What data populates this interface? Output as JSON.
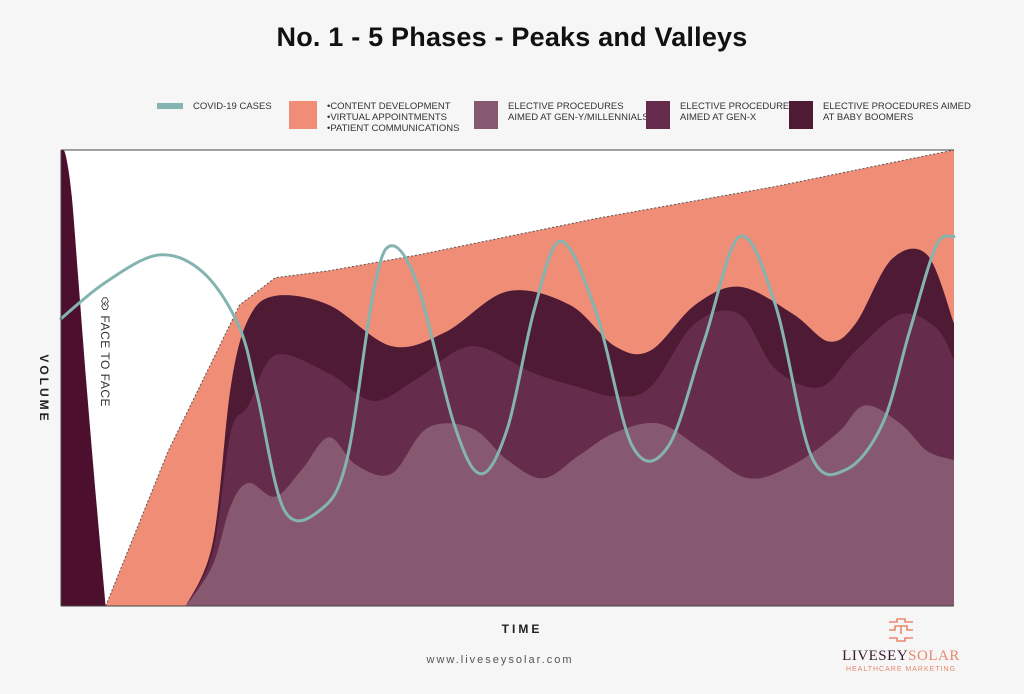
{
  "chart_data": {
    "type": "area",
    "title": "No. 1 - 5 Phases - Peaks and Valleys",
    "xlabel": "TIME",
    "ylabel": "VOLUME",
    "x_range": [
      0,
      100
    ],
    "y_range": [
      0,
      100
    ],
    "annotation": "FACE TO FACE",
    "series": [
      {
        "name": "Face to Face",
        "color": "#4c0f2e",
        "points": [
          [
            0,
            100
          ],
          [
            0.5,
            99
          ],
          [
            1.2,
            90
          ],
          [
            2,
            70
          ],
          [
            3,
            45
          ],
          [
            4,
            22
          ],
          [
            5,
            0
          ]
        ]
      },
      {
        "name": "Content Development / Virtual Appointments / Patient Communications",
        "color": "#ef8d77",
        "points": [
          [
            5,
            0
          ],
          [
            12,
            34
          ],
          [
            20,
            66
          ],
          [
            24,
            72
          ],
          [
            30,
            73.5
          ],
          [
            40,
            77
          ],
          [
            50,
            81
          ],
          [
            60,
            85
          ],
          [
            70,
            88.5
          ],
          [
            80,
            92
          ],
          [
            90,
            96
          ],
          [
            100,
            100
          ]
        ]
      },
      {
        "name": "Elective Procedures Aimed at Baby Boomers",
        "color": "#4e1a34",
        "points": [
          [
            14,
            0
          ],
          [
            17,
            14
          ],
          [
            19,
            48
          ],
          [
            21,
            63
          ],
          [
            24,
            68
          ],
          [
            30,
            66
          ],
          [
            37,
            57
          ],
          [
            43,
            60
          ],
          [
            50,
            69
          ],
          [
            57,
            66
          ],
          [
            62,
            57
          ],
          [
            66,
            56
          ],
          [
            71,
            66
          ],
          [
            76,
            70
          ],
          [
            82,
            64
          ],
          [
            86,
            58
          ],
          [
            89,
            62
          ],
          [
            93,
            76
          ],
          [
            97,
            77
          ],
          [
            100,
            62
          ]
        ]
      },
      {
        "name": "Elective Procedures Aimed at Gen-X",
        "color": "#652c4b",
        "points": [
          [
            14,
            0
          ],
          [
            17,
            12
          ],
          [
            19,
            38
          ],
          [
            21,
            44
          ],
          [
            24,
            55
          ],
          [
            30,
            51
          ],
          [
            35,
            45
          ],
          [
            40,
            50
          ],
          [
            46,
            57
          ],
          [
            53,
            51
          ],
          [
            58,
            48
          ],
          [
            62,
            46
          ],
          [
            66,
            48
          ],
          [
            71,
            62
          ],
          [
            76,
            64
          ],
          [
            80,
            52
          ],
          [
            85,
            48
          ],
          [
            89,
            56
          ],
          [
            94,
            64
          ],
          [
            98,
            61
          ],
          [
            100,
            54
          ]
        ]
      },
      {
        "name": "Elective Procedures Aimed at Gen-Y/Millennials",
        "color": "#865971",
        "points": [
          [
            14,
            0
          ],
          [
            17,
            9
          ],
          [
            19,
            22
          ],
          [
            21,
            27
          ],
          [
            24,
            24
          ],
          [
            27,
            30
          ],
          [
            30,
            37
          ],
          [
            33,
            31
          ],
          [
            37,
            29
          ],
          [
            41,
            39
          ],
          [
            46,
            39
          ],
          [
            50,
            32
          ],
          [
            54,
            28
          ],
          [
            58,
            33
          ],
          [
            62,
            38
          ],
          [
            67,
            40
          ],
          [
            72,
            34
          ],
          [
            77,
            28
          ],
          [
            82,
            31
          ],
          [
            87,
            38
          ],
          [
            90,
            44
          ],
          [
            94,
            40
          ],
          [
            97,
            34
          ],
          [
            100,
            32
          ]
        ]
      },
      {
        "name": "COVID-19 Cases",
        "color": "#84b4b0",
        "points": [
          [
            0,
            63
          ],
          [
            5,
            71
          ],
          [
            11,
            77
          ],
          [
            16,
            73
          ],
          [
            20,
            61
          ],
          [
            22,
            46
          ],
          [
            25,
            21
          ],
          [
            29,
            21
          ],
          [
            32,
            32
          ],
          [
            35,
            69
          ],
          [
            37,
            79
          ],
          [
            40,
            70
          ],
          [
            44,
            40
          ],
          [
            47,
            29
          ],
          [
            50,
            39
          ],
          [
            53,
            65
          ],
          [
            56,
            80
          ],
          [
            60,
            64
          ],
          [
            64,
            35
          ],
          [
            68,
            35
          ],
          [
            72,
            58
          ],
          [
            76,
            81
          ],
          [
            80,
            66
          ],
          [
            84,
            33
          ],
          [
            88,
            30
          ],
          [
            92,
            40
          ],
          [
            95,
            60
          ],
          [
            98,
            79
          ],
          [
            100,
            81
          ]
        ]
      }
    ],
    "legend": {
      "position": "top",
      "items": [
        {
          "key": "covid",
          "lines": [
            "COVID-19 CASES"
          ],
          "color": "#84b4b0",
          "shape": "line"
        },
        {
          "key": "content",
          "lines": [
            "•CONTENT DEVELOPMENT",
            "•VIRTUAL APPOINTMENTS",
            "•PATIENT COMMUNICATIONS"
          ],
          "color": "#ef8d77",
          "shape": "box"
        },
        {
          "key": "geny",
          "lines": [
            "ELECTIVE PROCEDURES",
            "AIMED AT GEN-Y/MILLENNIALS"
          ],
          "color": "#865971",
          "shape": "box"
        },
        {
          "key": "genx",
          "lines": [
            "ELECTIVE PROCEDURES",
            "AIMED AT GEN-X"
          ],
          "color": "#652c4b",
          "shape": "box"
        },
        {
          "key": "boomers",
          "lines": [
            "ELECTIVE PROCEDURES AIMED",
            "AT BABY BOOMERS"
          ],
          "color": "#4e1a34",
          "shape": "box"
        }
      ]
    }
  },
  "footer": {
    "website": "www.liveseysolar.com",
    "logo_part1": "LIVESEY",
    "logo_part2": "SOLAR",
    "logo_sub": "HEALTHCARE MARKETING"
  }
}
